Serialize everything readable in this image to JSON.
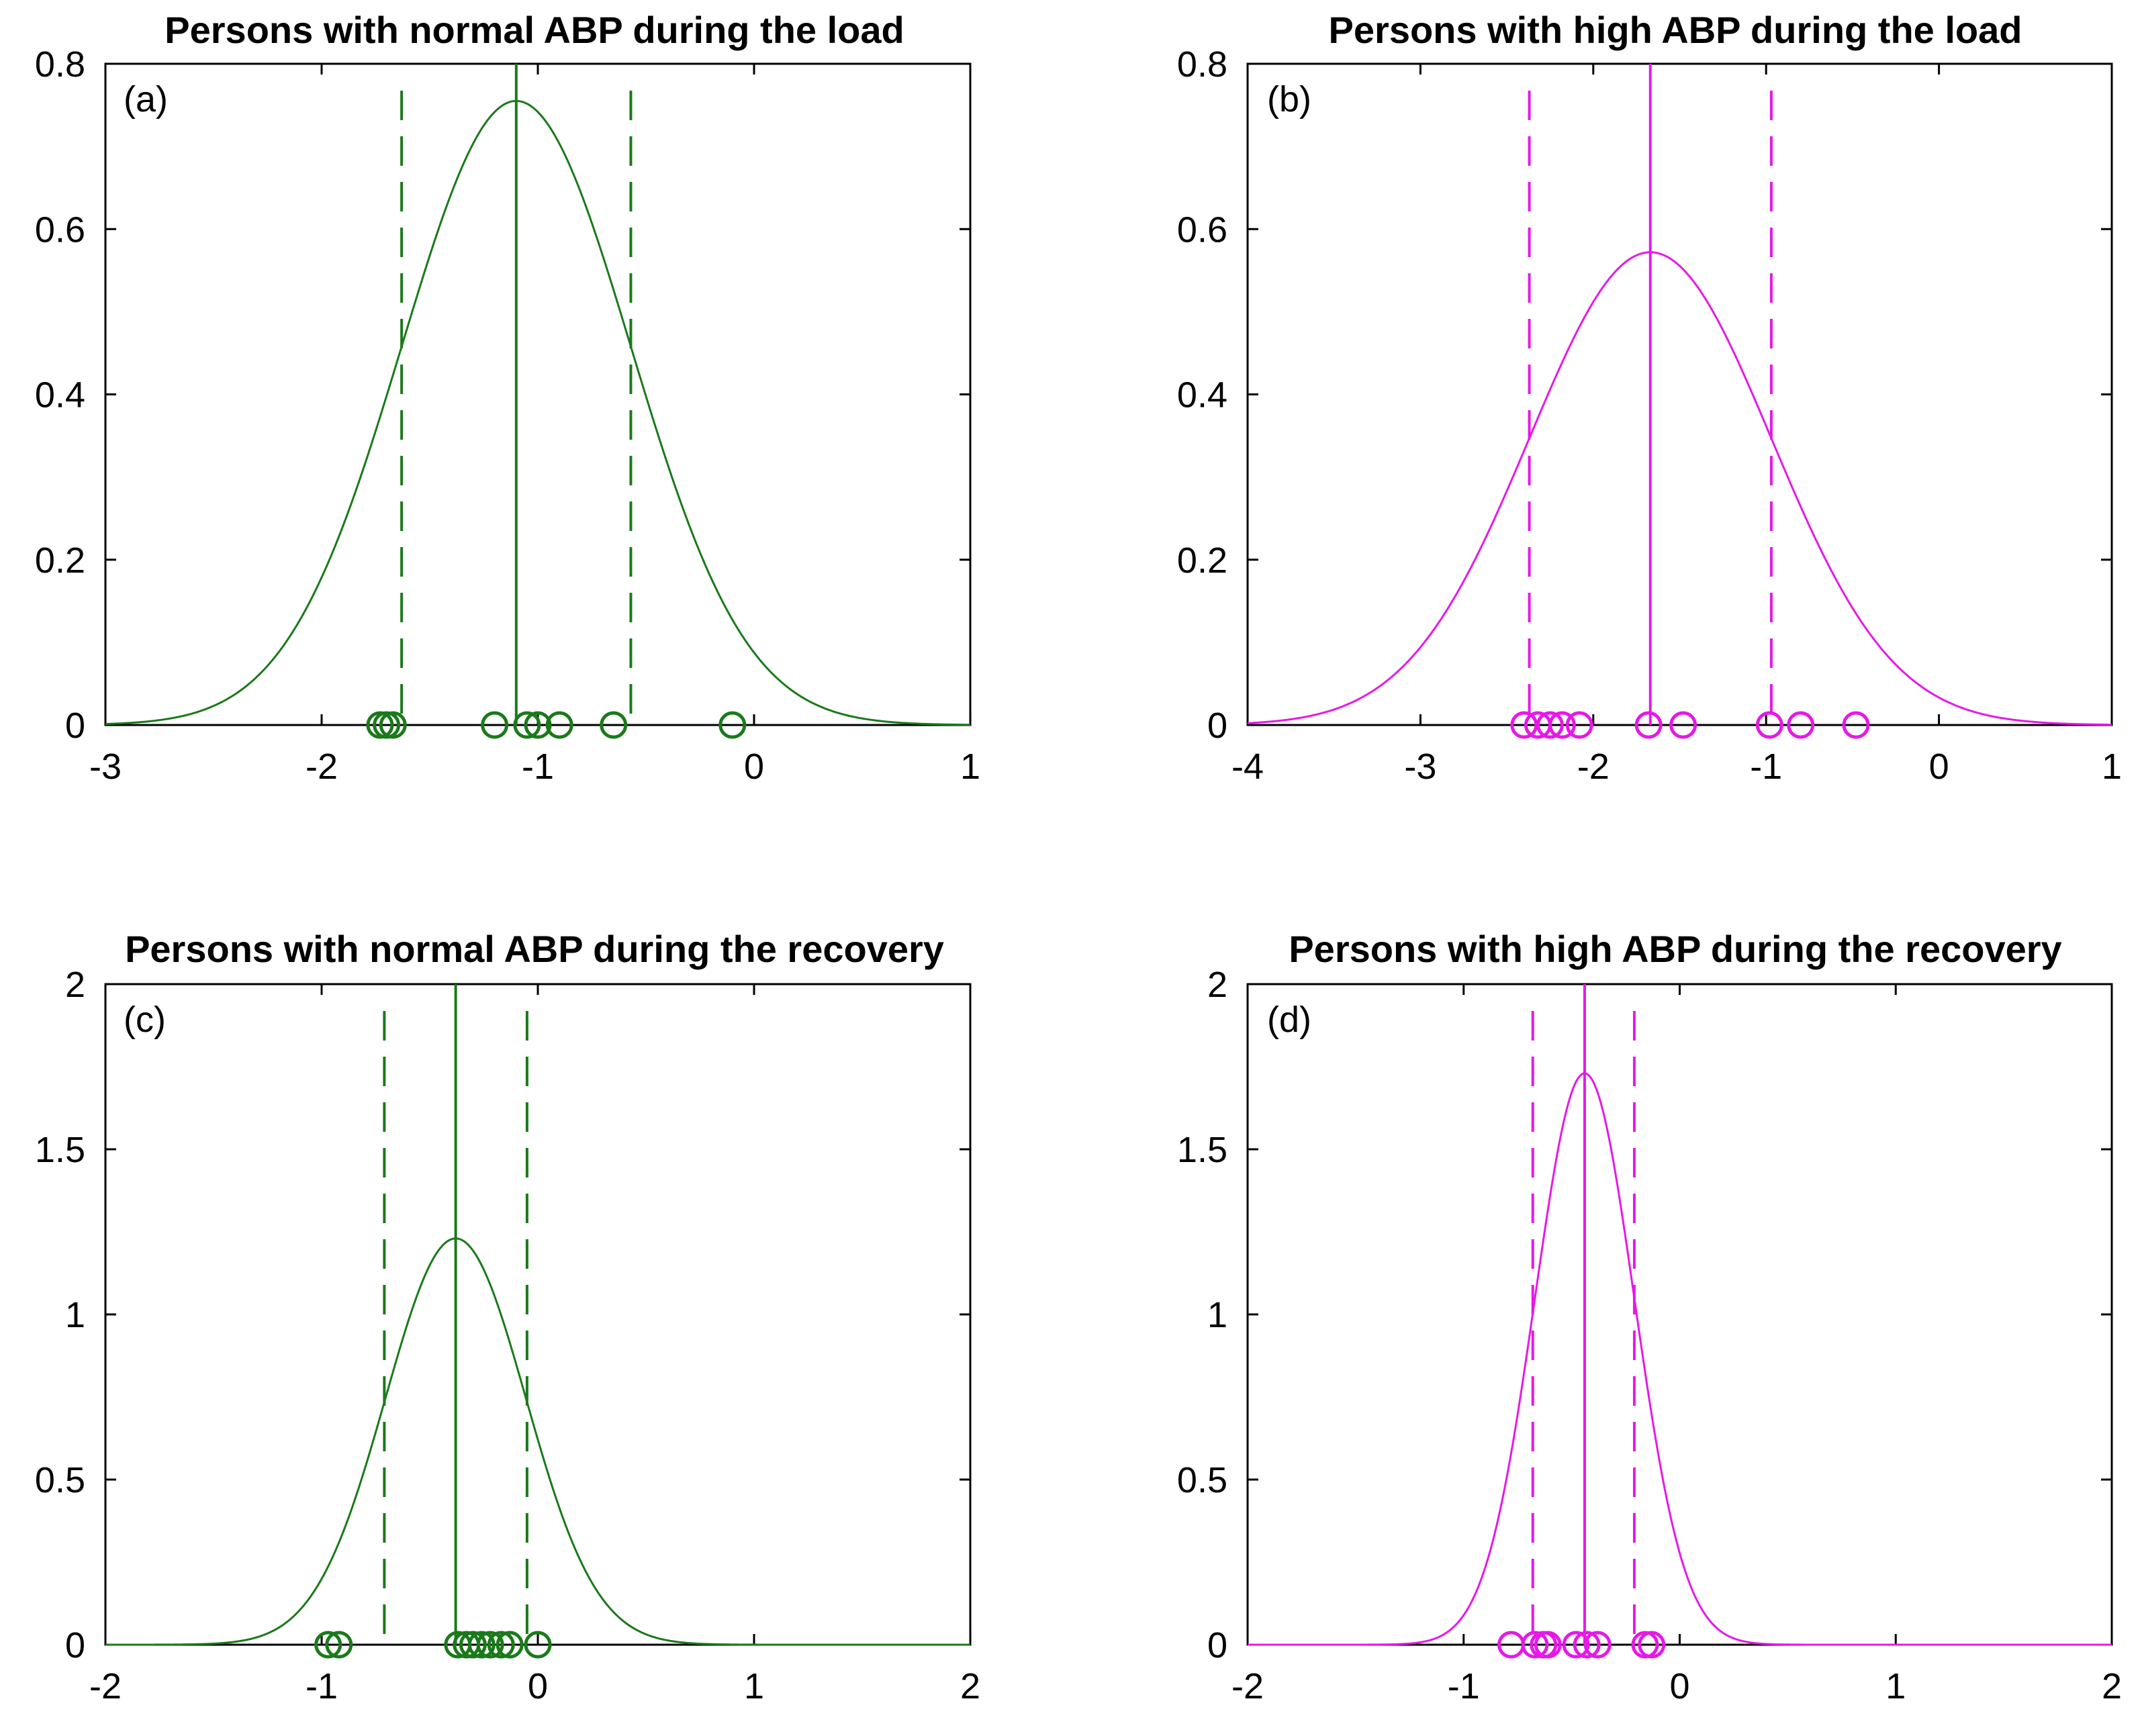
{
  "chart_data": [
    {
      "type": "line",
      "title": "Persons with normal ABP during the load",
      "panel_label": "(a)",
      "color": "#1a7a1a",
      "xlim": [
        -3,
        1
      ],
      "ylim": [
        0,
        0.8
      ],
      "xticks": [
        -3,
        -2,
        -1,
        0,
        1
      ],
      "yticks": [
        0,
        0.2,
        0.4,
        0.6,
        0.8
      ],
      "xtick_labels": [
        "-3",
        "-2",
        "-1",
        "0",
        "1"
      ],
      "ytick_labels": [
        "0",
        "0.2",
        "0.4",
        "0.6",
        "0.8"
      ],
      "curve": {
        "kind": "normal pdf",
        "mean": -1.1,
        "sd": 0.53,
        "peak": 0.755
      },
      "mean_line": -1.1,
      "ci_lines": [
        -1.63,
        -0.57
      ],
      "points": [
        -1.73,
        -1.7,
        -1.67,
        -1.2,
        -1.05,
        -1.0,
        -0.9,
        -0.65,
        -0.1
      ]
    },
    {
      "type": "line",
      "title": "Persons with high ABP during the load",
      "panel_label": "(b)",
      "color": "#e619e6",
      "xlim": [
        -4,
        1
      ],
      "ylim": [
        0,
        0.8
      ],
      "xticks": [
        -4,
        -3,
        -2,
        -1,
        0,
        1
      ],
      "yticks": [
        0,
        0.2,
        0.4,
        0.6,
        0.8
      ],
      "xtick_labels": [
        "-4",
        "-3",
        "-2",
        "-1",
        "0",
        "1"
      ],
      "ytick_labels": [
        "0",
        "0.2",
        "0.4",
        "0.6",
        "0.8"
      ],
      "curve": {
        "kind": "normal pdf",
        "mean": -1.67,
        "sd": 0.7,
        "peak": 0.572
      },
      "mean_line": -1.67,
      "ci_lines": [
        -2.37,
        -0.97
      ],
      "points": [
        -2.4,
        -2.32,
        -2.25,
        -2.18,
        -2.08,
        -1.68,
        -1.48,
        -0.98,
        -0.8,
        -0.48
      ]
    },
    {
      "type": "line",
      "title": "Persons with normal ABP during the recovery",
      "panel_label": "(c)",
      "color": "#1a7a1a",
      "xlim": [
        -2,
        2
      ],
      "ylim": [
        0,
        2
      ],
      "xticks": [
        -2,
        -1,
        0,
        1,
        2
      ],
      "yticks": [
        0,
        0.5,
        1,
        1.5,
        2
      ],
      "xtick_labels": [
        "-2",
        "-1",
        "0",
        "1",
        "2"
      ],
      "ytick_labels": [
        "0",
        "0.5",
        "1",
        "1.5",
        "2"
      ],
      "curve": {
        "kind": "normal pdf",
        "mean": -0.38,
        "sd": 0.325,
        "peak": 1.23
      },
      "mean_line": -0.38,
      "ci_lines": [
        -0.71,
        -0.05
      ],
      "points": [
        -0.97,
        -0.92,
        -0.37,
        -0.33,
        -0.3,
        -0.26,
        -0.22,
        -0.17,
        -0.13,
        0.0
      ]
    },
    {
      "type": "line",
      "title": "Persons with high ABP during the recovery",
      "panel_label": "(d)",
      "color": "#e619e6",
      "xlim": [
        -2,
        2
      ],
      "ylim": [
        0,
        2
      ],
      "xticks": [
        -2,
        -1,
        0,
        1,
        2
      ],
      "yticks": [
        0,
        0.5,
        1,
        1.5,
        2
      ],
      "xtick_labels": [
        "-2",
        "-1",
        "0",
        "1",
        "2"
      ],
      "ytick_labels": [
        "0",
        "0.5",
        "1",
        "1.5",
        "2"
      ],
      "curve": {
        "kind": "normal pdf",
        "mean": -0.44,
        "sd": 0.23,
        "peak": 1.73
      },
      "mean_line": -0.44,
      "ci_lines": [
        -0.68,
        -0.21
      ],
      "points": [
        -0.78,
        -0.67,
        -0.63,
        -0.61,
        -0.48,
        -0.43,
        -0.38,
        -0.16,
        -0.13
      ]
    }
  ]
}
